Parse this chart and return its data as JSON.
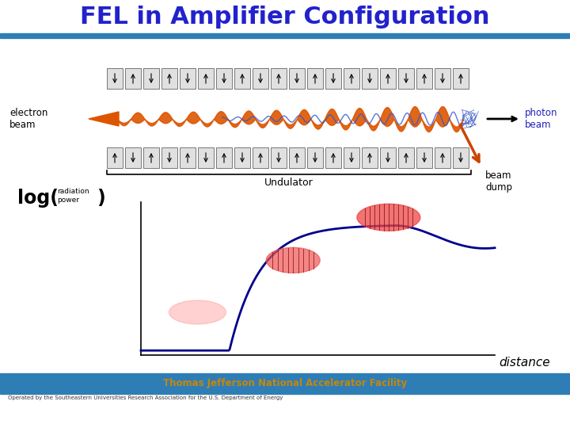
{
  "title": "FEL in Amplifier Configuration",
  "title_color": "#2222cc",
  "title_fontsize": 22,
  "bg_color": "#ffffff",
  "header_bar_color": "#2e7eb5",
  "footer_bar_color": "#2e7eb5",
  "footer_text": "Thomas Jefferson National Accelerator Facility",
  "footer_text_color": "#c8860a",
  "footer_sub_text": "Operated by the Southeastern Universities Research Association for the U.S. Department of Energy",
  "electron_beam_label": "electron\nbeam",
  "photon_beam_label": "photon\nbeam",
  "undulator_label": "Undulator",
  "beam_dump_label": "beam\ndump",
  "distance_label": "distance",
  "log_label": "log(",
  "radiation_label": "radiation\npower",
  "close_paren": "  )",
  "curve_color": "#00008b",
  "wave_color": "#dd5500",
  "photon_blob_color": "#2222aa",
  "beam_dump_color": "#cc4400"
}
